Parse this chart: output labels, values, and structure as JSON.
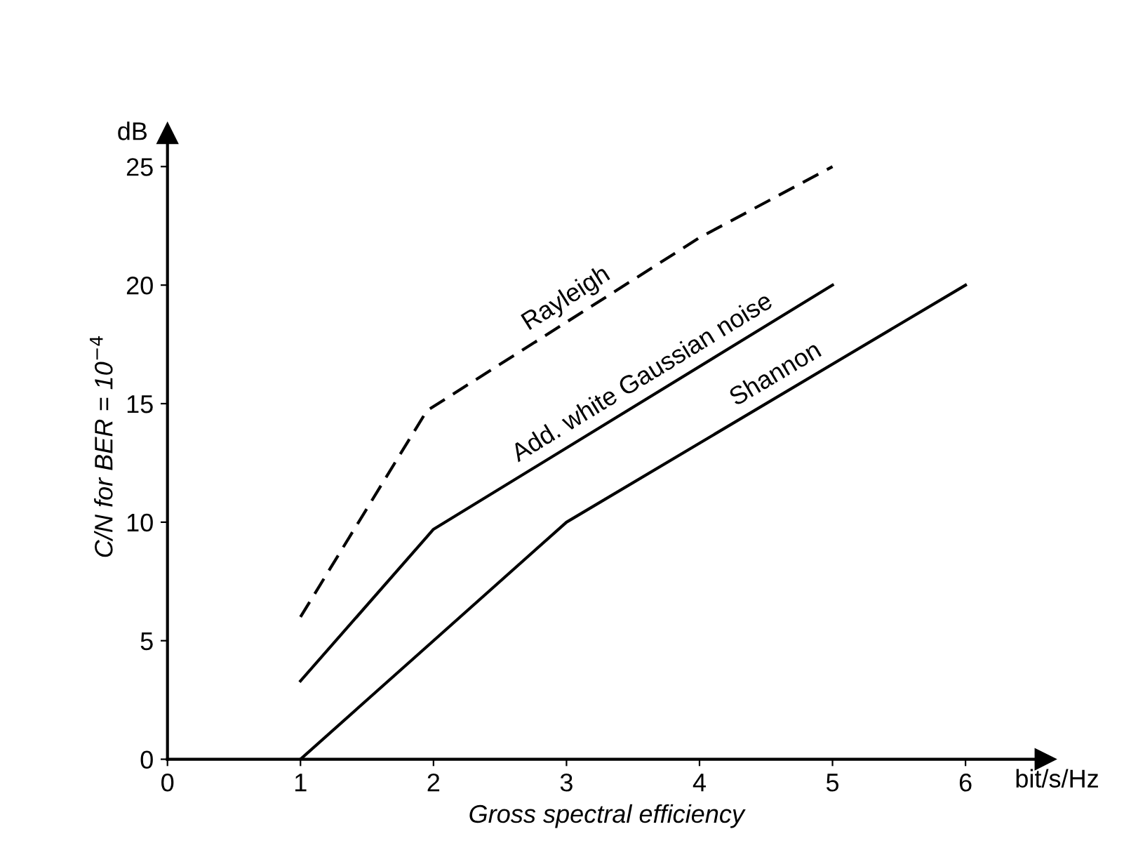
{
  "chart_data": {
    "type": "line",
    "xlabel": "Gross spectral efficiency",
    "ylabel": "C/N for BER = 10$^{−4}$",
    "xlim": [
      0,
      6.6
    ],
    "ylim": [
      0,
      26.4
    ],
    "xticks": [
      0,
      1,
      2,
      3,
      4,
      5,
      6
    ],
    "yticks": [
      0,
      5,
      10,
      15,
      20,
      25
    ],
    "grid": false,
    "marker": "none",
    "annotations": [
      "dB",
      "bit/s/Hz"
    ],
    "series": [
      {
        "name": "Rayleigh",
        "color": "#000000",
        "line_style": "dashed",
        "x": [
          1,
          1.95,
          4,
          5
        ],
        "values": [
          6,
          14.7,
          22,
          25
        ]
      },
      {
        "name": "Add. white Gaussian noise",
        "color": "#000000",
        "line_style": "solid",
        "x": [
          1,
          2,
          5
        ],
        "values": [
          3.3,
          9.7,
          20
        ]
      },
      {
        "name": "Shannon",
        "color": "#000000",
        "line_style": "solid",
        "x": [
          1,
          2,
          3,
          6
        ],
        "values": [
          0,
          5,
          10,
          20
        ]
      }
    ]
  }
}
